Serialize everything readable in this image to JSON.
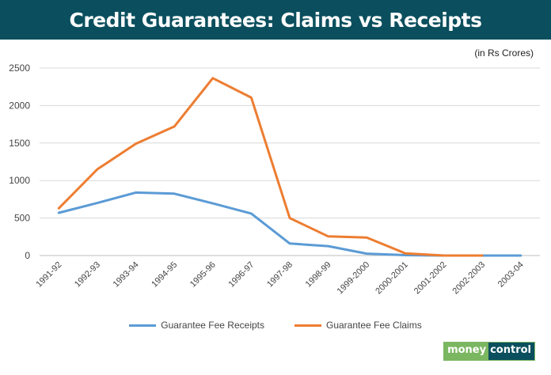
{
  "header": {
    "title": "Credit Guarantees: Claims vs Receipts"
  },
  "unit_note": "(in Rs Crores)",
  "brand": {
    "part1": "money",
    "part2": "control"
  },
  "chart_data": {
    "type": "line",
    "title": "Credit Guarantees: Claims vs Receipts",
    "xlabel": "",
    "ylabel": "",
    "categories": [
      "1991-92",
      "1992-93",
      "1993-94",
      "1994-95",
      "1995-96",
      "1996-97",
      "1997-98",
      "1998-99",
      "1999-2000",
      "2000-2001",
      "2001-2002",
      "2002-2003",
      "2003-04"
    ],
    "ylim": [
      0,
      2500
    ],
    "yticks": [
      0,
      500,
      1000,
      1500,
      2000,
      2500
    ],
    "grid": true,
    "legend_position": "bottom",
    "series": [
      {
        "name": "Guarantee Fee Receipts",
        "color": "#5b9bd5",
        "values": [
          570,
          700,
          840,
          825,
          695,
          560,
          160,
          125,
          25,
          5,
          0,
          0,
          0
        ]
      },
      {
        "name": "Guarantee Fee Claims",
        "color": "#ed7d31",
        "values": [
          630,
          1150,
          1490,
          1720,
          2365,
          2105,
          500,
          255,
          240,
          30,
          0,
          0,
          null
        ]
      }
    ]
  }
}
